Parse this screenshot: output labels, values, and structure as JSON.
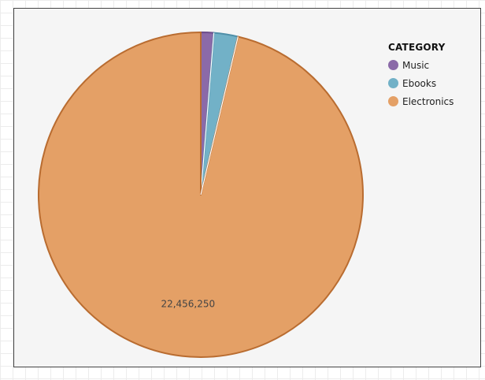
{
  "chart_data": {
    "type": "pie",
    "legend_title": "CATEGORY",
    "legend_position": "top-right",
    "start_angle_deg": 0,
    "direction": "clockwise",
    "slices": [
      {
        "name": "Music",
        "value": 300000,
        "color": "#8b6aa8",
        "stroke": "#6b4c8a"
      },
      {
        "name": "Ebooks",
        "value": 560000,
        "color": "#72b1c7",
        "stroke": "#4f8fa8"
      },
      {
        "name": "Electronics",
        "value": 22456250,
        "color": "#e4a066",
        "stroke": "#b96c30",
        "label": "22,456,250"
      }
    ]
  }
}
